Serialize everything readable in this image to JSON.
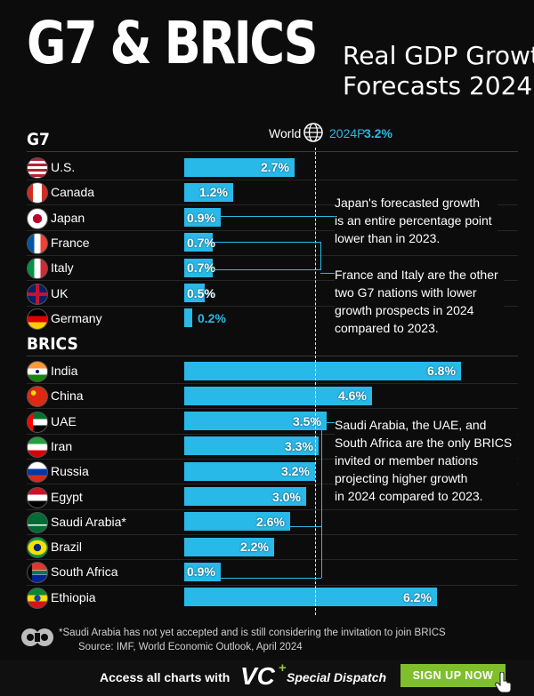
{
  "header": {
    "title": "G7 & BRICS",
    "subtitle_line1": "Real GDP Growth",
    "subtitle_line2": "Forecasts 2024"
  },
  "world": {
    "label": "World",
    "icon": "globe-icon",
    "year": "2024P",
    "value": "3.2%"
  },
  "colors": {
    "bar": "#29b9e8",
    "background": "#0c0c0c",
    "accent_green": "#7fbf2b"
  },
  "chart_data": {
    "type": "bar",
    "orientation": "horizontal",
    "reference_line": {
      "label": "World 2024P",
      "value": 3.2
    },
    "groups": [
      {
        "name": "G7",
        "categories": [
          "U.S.",
          "Canada",
          "Japan",
          "France",
          "Italy",
          "UK",
          "Germany"
        ],
        "values": [
          2.7,
          1.2,
          0.9,
          0.7,
          0.7,
          0.5,
          0.2
        ],
        "labels": [
          "2.7%",
          "1.2%",
          "0.9%",
          "0.7%",
          "0.7%",
          "0.5%",
          "0.2%"
        ],
        "flags": [
          "us-flag-icon",
          "canada-flag-icon",
          "japan-flag-icon",
          "france-flag-icon",
          "italy-flag-icon",
          "uk-flag-icon",
          "germany-flag-icon"
        ]
      },
      {
        "name": "BRICS",
        "categories": [
          "India",
          "China",
          "UAE",
          "Iran",
          "Russia",
          "Egypt",
          "Saudi Arabia*",
          "Brazil",
          "South Africa",
          "Ethiopia"
        ],
        "values": [
          6.8,
          4.6,
          3.5,
          3.3,
          3.2,
          3.0,
          2.6,
          2.2,
          0.9,
          6.2
        ],
        "labels": [
          "6.8%",
          "4.6%",
          "3.5%",
          "3.3%",
          "3.2%",
          "3.0%",
          "2.6%",
          "2.2%",
          "0.9%",
          "6.2%"
        ],
        "flags": [
          "india-flag-icon",
          "china-flag-icon",
          "uae-flag-icon",
          "iran-flag-icon",
          "russia-flag-icon",
          "egypt-flag-icon",
          "saudi-flag-icon",
          "brazil-flag-icon",
          "south-africa-flag-icon",
          "ethiopia-flag-icon"
        ]
      }
    ]
  },
  "annotations": [
    {
      "lines": [
        "Japan's forecasted growth",
        "is an entire percentage point",
        "lower than in 2023."
      ]
    },
    {
      "lines": [
        "France and Italy are the other",
        "two G7 nations with lower",
        "growth prospects in 2024",
        "compared to 2023."
      ]
    },
    {
      "lines": [
        "Saudi Arabia, the UAE, and",
        "South Africa are the only BRICS",
        "invited or member nations",
        "projecting higher growth",
        "in 2024 compared to 2023."
      ]
    }
  ],
  "footer": {
    "note": "*Saudi Arabia has not yet accepted and is still considering the invitation to join BRICS",
    "source": "Source: IMF, World Economic Outlook, April 2024",
    "logo": "visual-capitalist-logo-icon"
  },
  "banner": {
    "text": "Access all charts with",
    "brand": "VC",
    "brand_plus": "+",
    "brand_suffix": "Special Dispatch",
    "button": "SIGN UP NOW",
    "cursor_icon": "hand-pointer-icon"
  }
}
